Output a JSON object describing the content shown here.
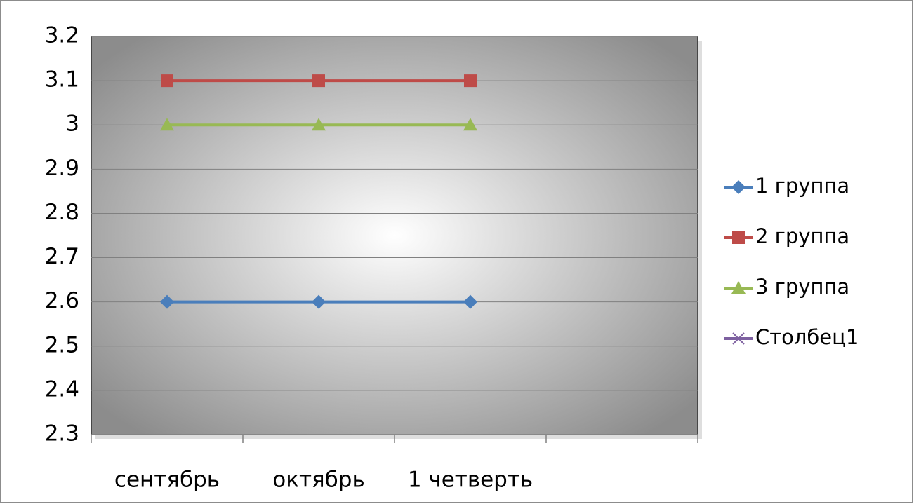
{
  "chart_data": {
    "type": "line",
    "categories": [
      "сентябрь",
      "октябрь",
      "1 четверть",
      null
    ],
    "series": [
      {
        "name": "1 группа",
        "color": "#4a7ebb",
        "marker": "diamond",
        "values": [
          2.6,
          2.6,
          2.6,
          null
        ]
      },
      {
        "name": "2 группа",
        "color": "#be4b48",
        "marker": "square",
        "values": [
          3.1,
          3.1,
          3.1,
          null
        ]
      },
      {
        "name": "3 группа",
        "color": "#98b954",
        "marker": "triangle",
        "values": [
          3,
          3,
          3,
          null
        ]
      },
      {
        "name": "Столбец1",
        "color": "#7d60a0",
        "marker": "x",
        "values": [
          null,
          null,
          null,
          null
        ]
      }
    ],
    "ylim": [
      2.3,
      3.2
    ],
    "yticks": [
      2.3,
      2.4,
      2.5,
      2.6,
      2.7,
      2.8,
      2.9,
      3,
      3.1,
      3.2
    ],
    "grid": true,
    "legend": "right"
  }
}
